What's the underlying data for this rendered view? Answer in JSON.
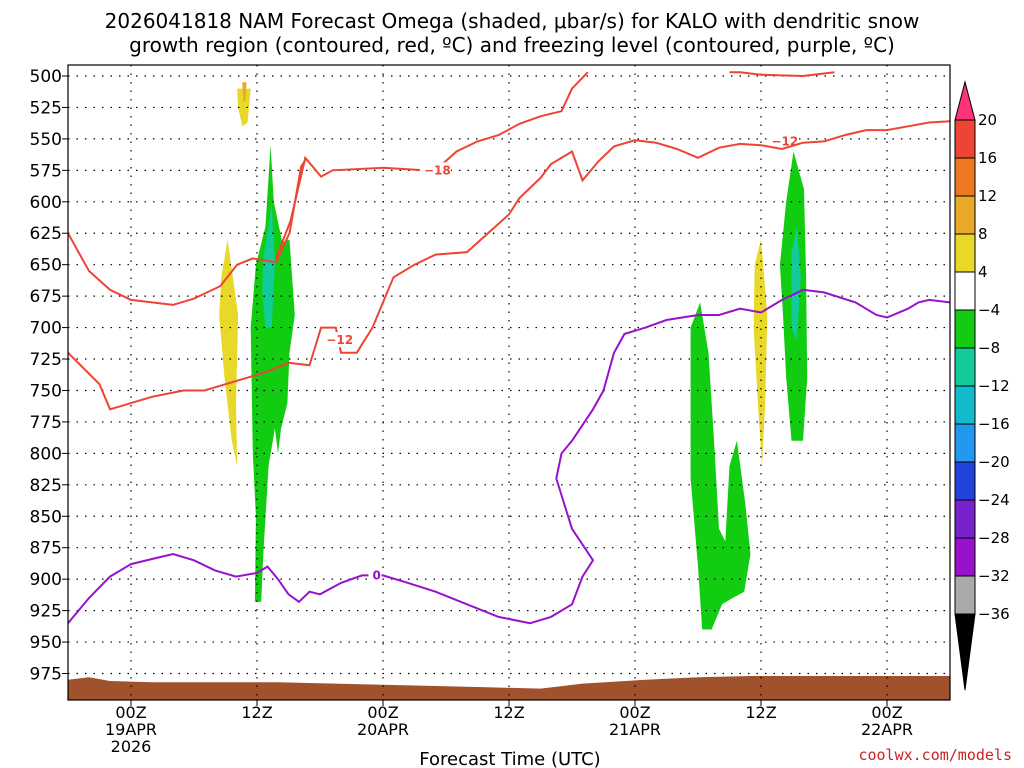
{
  "title_line1": "2026041818 NAM Forecast Omega (shaded, μbar/s) for KALO with dendritic snow",
  "title_line2": "growth region (contoured, red, ºC) and freezing level (contoured, purple, ºC)",
  "credit": "coolwx.com/models",
  "chart_data": {
    "type": "heatmap",
    "xlabel": "Forecast Time (UTC)",
    "ylabel": "",
    "ylim": [
      500,
      990
    ],
    "y_ticks": [
      500,
      525,
      550,
      575,
      600,
      625,
      650,
      675,
      700,
      725,
      750,
      775,
      800,
      825,
      850,
      875,
      900,
      925,
      950,
      975
    ],
    "x_ticks": [
      {
        "label1": "00Z",
        "label2": "19APR",
        "label3": "2026",
        "hour": 6
      },
      {
        "label1": "12Z",
        "label2": "",
        "label3": "",
        "hour": 18
      },
      {
        "label1": "00Z",
        "label2": "20APR",
        "label3": "",
        "hour": 30
      },
      {
        "label1": "12Z",
        "label2": "",
        "label3": "",
        "hour": 42
      },
      {
        "label1": "00Z",
        "label2": "21APR",
        "label3": "",
        "hour": 54
      },
      {
        "label1": "12Z",
        "label2": "",
        "label3": "",
        "hour": 66
      },
      {
        "label1": "00Z",
        "label2": "22APR",
        "label3": "",
        "hour": 78
      }
    ],
    "x_range_hours": [
      0,
      84
    ],
    "grid": true,
    "colorbar": {
      "ticks": [
        "20",
        "16",
        "12",
        "8",
        "4",
        "−4",
        "−8",
        "−12",
        "−16",
        "−20",
        "−24",
        "−28",
        "−32",
        "−36"
      ],
      "colors": [
        "#ff3377",
        "#ee4433",
        "#ee7722",
        "#e8a828",
        "#e8d828",
        "#ffffff",
        "#11cc11",
        "#11cc99",
        "#11bbcc",
        "#2299ee",
        "#2244dd",
        "#7722cc",
        "#9911cc",
        "#aaaaaa",
        "#000000"
      ]
    },
    "omega_regions": [
      {
        "class": "4 to 8",
        "color": "#e8d828",
        "points": [
          [
            16.1,
            510
          ],
          [
            17.4,
            510
          ],
          [
            17.1,
            537
          ],
          [
            16.6,
            540
          ],
          [
            16.2,
            525
          ]
        ]
      },
      {
        "class": "8 to 12",
        "color": "#e8a828",
        "points": [
          [
            16.6,
            505
          ],
          [
            17.0,
            505
          ],
          [
            16.9,
            520
          ],
          [
            16.7,
            520
          ]
        ]
      },
      {
        "class": "4 to 8",
        "color": "#e8d828",
        "points": [
          [
            14.6,
            660
          ],
          [
            15.2,
            630
          ],
          [
            16.2,
            690
          ],
          [
            16.0,
            760
          ],
          [
            16.1,
            810
          ],
          [
            15.6,
            790
          ],
          [
            14.9,
            740
          ],
          [
            14.4,
            690
          ]
        ]
      },
      {
        "class": "-8 to -4",
        "color": "#11cc11",
        "points": [
          [
            17.9,
            650
          ],
          [
            18.8,
            620
          ],
          [
            19.3,
            555
          ],
          [
            19.6,
            600
          ],
          [
            20.4,
            632
          ],
          [
            21.1,
            630
          ],
          [
            21.6,
            690
          ],
          [
            21.1,
            720
          ],
          [
            20.9,
            760
          ],
          [
            20.3,
            780
          ],
          [
            20.0,
            800
          ],
          [
            19.7,
            780
          ],
          [
            19.1,
            810
          ],
          [
            18.6,
            880
          ],
          [
            18.4,
            918
          ],
          [
            17.8,
            918
          ],
          [
            17.9,
            850
          ],
          [
            17.6,
            800
          ],
          [
            17.4,
            700
          ]
        ]
      },
      {
        "class": "-12 to -8",
        "color": "#11cc99",
        "points": [
          [
            18.6,
            645
          ],
          [
            19.1,
            620
          ],
          [
            19.4,
            600
          ],
          [
            19.7,
            650
          ],
          [
            19.4,
            700
          ],
          [
            18.8,
            700
          ],
          [
            18.5,
            670
          ]
        ]
      },
      {
        "class": "-8 to -4",
        "color": "#11cc11",
        "points": [
          [
            59.3,
            700
          ],
          [
            60.2,
            680
          ],
          [
            61.0,
            720
          ],
          [
            61.6,
            800
          ],
          [
            62.0,
            860
          ],
          [
            62.6,
            870
          ],
          [
            63.0,
            810
          ],
          [
            63.7,
            790
          ],
          [
            64.5,
            840
          ],
          [
            65.0,
            880
          ],
          [
            64.4,
            910
          ],
          [
            63.3,
            915
          ],
          [
            62.3,
            920
          ],
          [
            61.3,
            940
          ],
          [
            60.4,
            940
          ],
          [
            60.0,
            890
          ],
          [
            59.3,
            820
          ]
        ]
      },
      {
        "class": "4 to 8",
        "color": "#e8d828",
        "points": [
          [
            65.4,
            650
          ],
          [
            66.0,
            630
          ],
          [
            66.6,
            690
          ],
          [
            66.4,
            760
          ],
          [
            66.1,
            810
          ],
          [
            65.7,
            760
          ],
          [
            65.3,
            700
          ]
        ]
      },
      {
        "class": "-8 to -4",
        "color": "#11cc11",
        "points": [
          [
            68.4,
            600
          ],
          [
            69.1,
            560
          ],
          [
            70.1,
            590
          ],
          [
            70.3,
            660
          ],
          [
            70.4,
            740
          ],
          [
            70.0,
            790
          ],
          [
            68.9,
            790
          ],
          [
            68.4,
            740
          ],
          [
            68.1,
            690
          ],
          [
            67.8,
            650
          ]
        ]
      },
      {
        "class": "-12 to -8",
        "color": "#11cc99",
        "points": [
          [
            68.9,
            640
          ],
          [
            69.4,
            620
          ],
          [
            69.8,
            660
          ],
          [
            69.4,
            710
          ],
          [
            68.9,
            700
          ]
        ]
      }
    ],
    "ground": {
      "color": "#a0522d",
      "top": [
        [
          0,
          980
        ],
        [
          2,
          978
        ],
        [
          4,
          981
        ],
        [
          8,
          982
        ],
        [
          20,
          982
        ],
        [
          30,
          984
        ],
        [
          40,
          986
        ],
        [
          45,
          987
        ],
        [
          49,
          983
        ],
        [
          55,
          980
        ],
        [
          60,
          978
        ],
        [
          65,
          977
        ],
        [
          84,
          977
        ]
      ]
    },
    "isotherms": [
      {
        "name": "-18",
        "color": "#ee4433",
        "label": "−18",
        "label_at": [
          33.9,
          575
        ],
        "points": [
          [
            19.8,
            645
          ],
          [
            21.2,
            615
          ],
          [
            22.6,
            565
          ],
          [
            24.1,
            580
          ],
          [
            25.2,
            575
          ],
          [
            30,
            573
          ],
          [
            33.9,
            575
          ],
          [
            35.0,
            575
          ],
          [
            37.0,
            560
          ],
          [
            39.0,
            552
          ],
          [
            41.0,
            547
          ],
          [
            43.0,
            538
          ],
          [
            45.0,
            532
          ],
          [
            46.0,
            530
          ],
          [
            47.0,
            528
          ],
          [
            48.0,
            510
          ],
          [
            49.5,
            497
          ]
        ]
      },
      {
        "name": "-12 upper",
        "color": "#ee4433",
        "label": "−12",
        "label_at": [
          67.0,
          552
        ],
        "points": [
          [
            0,
            625
          ],
          [
            1.0,
            640
          ],
          [
            2.0,
            655
          ],
          [
            4.0,
            670
          ],
          [
            6.0,
            678
          ],
          [
            8.0,
            680
          ],
          [
            10.0,
            682
          ],
          [
            12.0,
            677
          ],
          [
            14.5,
            667
          ],
          [
            16.1,
            650
          ],
          [
            17.6,
            645
          ],
          [
            19.8,
            648
          ],
          [
            21.1,
            625
          ],
          [
            22.2,
            572
          ],
          [
            22.6,
            567
          ]
        ]
      },
      {
        "name": "-12 lower",
        "color": "#ee4433",
        "label": "−12",
        "label_at": [
          24.6,
          710
        ],
        "points": [
          [
            0,
            720
          ],
          [
            3.0,
            745
          ],
          [
            4.0,
            765
          ],
          [
            6.0,
            760
          ],
          [
            8.0,
            755
          ],
          [
            11.0,
            750
          ],
          [
            13.0,
            750
          ],
          [
            15.0,
            745
          ],
          [
            17.0,
            740
          ],
          [
            19.0,
            735
          ],
          [
            21.0,
            728
          ],
          [
            23.0,
            730
          ],
          [
            24.1,
            700
          ],
          [
            25.5,
            700
          ],
          [
            26.0,
            720
          ],
          [
            27.5,
            720
          ],
          [
            29.0,
            700
          ],
          [
            30.0,
            680
          ],
          [
            31.0,
            660
          ],
          [
            33.0,
            650
          ],
          [
            35.0,
            642
          ],
          [
            38.0,
            640
          ],
          [
            40.0,
            625
          ],
          [
            42.0,
            610
          ],
          [
            43.0,
            597
          ],
          [
            45.0,
            581
          ],
          [
            46.0,
            570
          ],
          [
            48.0,
            560
          ],
          [
            49.0,
            583
          ],
          [
            50.5,
            568
          ],
          [
            52.0,
            556
          ],
          [
            54.0,
            551
          ],
          [
            56.0,
            553
          ],
          [
            58.0,
            558
          ],
          [
            60.0,
            565
          ],
          [
            62.0,
            557
          ],
          [
            64.0,
            554
          ],
          [
            66.0,
            555
          ],
          [
            68.0,
            558
          ],
          [
            70.0,
            553
          ],
          [
            72.0,
            552
          ],
          [
            74.0,
            547
          ],
          [
            76.0,
            543
          ],
          [
            78.0,
            543
          ],
          [
            80.0,
            540
          ],
          [
            82.0,
            537
          ],
          [
            84.0,
            536
          ]
        ]
      },
      {
        "name": "-12 top",
        "color": "#ee4433",
        "label": "",
        "label_at": [
          0,
          0
        ],
        "points": [
          [
            63.0,
            497
          ],
          [
            64.0,
            497
          ],
          [
            66.0,
            499
          ],
          [
            70.0,
            500
          ],
          [
            72.0,
            498
          ],
          [
            73.0,
            497
          ]
        ]
      },
      {
        "name": "0",
        "color": "#9911cc",
        "label": "0",
        "label_at": [
          29.0,
          897
        ],
        "points": [
          [
            0,
            935
          ],
          [
            2.0,
            915
          ],
          [
            4.0,
            898
          ],
          [
            6.0,
            888
          ],
          [
            8.0,
            884
          ],
          [
            10.0,
            880
          ],
          [
            12.0,
            885
          ],
          [
            14.0,
            893
          ],
          [
            16.0,
            898
          ],
          [
            18.0,
            895
          ],
          [
            19.0,
            890
          ],
          [
            20.0,
            900
          ],
          [
            21.0,
            912
          ],
          [
            22.0,
            918
          ],
          [
            23.0,
            910
          ],
          [
            24.0,
            912
          ],
          [
            26.0,
            903
          ],
          [
            28.0,
            897
          ],
          [
            30.0,
            897
          ],
          [
            32.0,
            902
          ],
          [
            35.0,
            910
          ],
          [
            38.0,
            920
          ],
          [
            41.0,
            930
          ],
          [
            44.0,
            935
          ],
          [
            46.0,
            930
          ],
          [
            48.0,
            920
          ],
          [
            49.0,
            898
          ],
          [
            50.0,
            885
          ],
          [
            48.0,
            860
          ],
          [
            46.5,
            820
          ],
          [
            47.0,
            800
          ],
          [
            48.0,
            790
          ],
          [
            50.0,
            765
          ],
          [
            51.0,
            750
          ],
          [
            52.0,
            720
          ],
          [
            53.0,
            705
          ],
          [
            55.0,
            700
          ],
          [
            57.0,
            694
          ],
          [
            60.0,
            690
          ],
          [
            62.0,
            690
          ],
          [
            64.0,
            685
          ],
          [
            66.0,
            688
          ],
          [
            68.0,
            678
          ],
          [
            70.0,
            670
          ],
          [
            72.0,
            672
          ],
          [
            75.0,
            680
          ],
          [
            77.0,
            690
          ],
          [
            78.0,
            692
          ],
          [
            80.0,
            685
          ],
          [
            81.0,
            680
          ],
          [
            82.0,
            678
          ],
          [
            84.0,
            680
          ]
        ]
      }
    ]
  }
}
